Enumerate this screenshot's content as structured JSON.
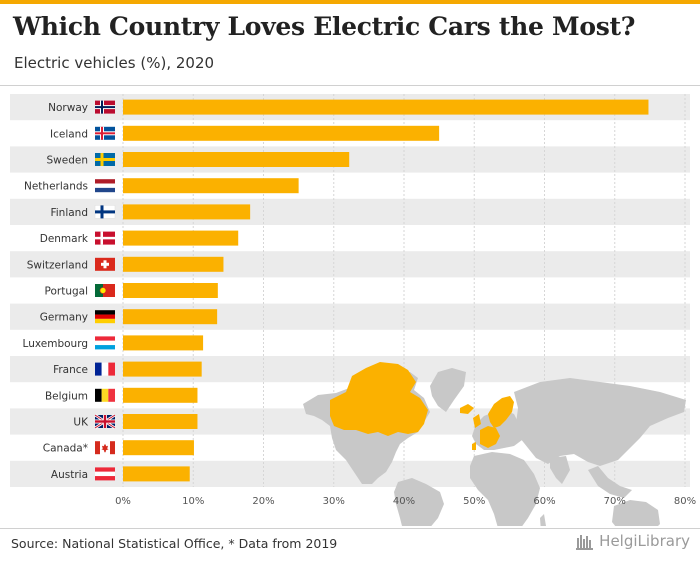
{
  "header": {
    "title": "Which Country Loves Electric Cars the Most?",
    "subtitle": "Electric vehicles (%), 2020"
  },
  "footer": {
    "source": "Source: National Statistical Office, * Data from 2019",
    "brand": "HelgiLibrary"
  },
  "colors": {
    "bar": "#fbb100",
    "accent": "#f5a800",
    "band": "#ebebeb",
    "map_land": "#c8c8c8",
    "map_highlight": "#fbb100"
  },
  "chart_data": {
    "type": "bar",
    "orientation": "horizontal",
    "title": "Which Country Loves Electric Cars the Most?",
    "subtitle": "Electric vehicles (%), 2020",
    "categories": [
      "Norway",
      "Iceland",
      "Sweden",
      "Netherlands",
      "Finland",
      "Denmark",
      "Switzerland",
      "Portugal",
      "Germany",
      "Luxembourg",
      "France",
      "Belgium",
      "UK",
      "Canada*",
      "Austria"
    ],
    "flags": [
      "norway-flag-icon",
      "iceland-flag-icon",
      "sweden-flag-icon",
      "netherlands-flag-icon",
      "finland-flag-icon",
      "denmark-flag-icon",
      "switzerland-flag-icon",
      "portugal-flag-icon",
      "germany-flag-icon",
      "luxembourg-flag-icon",
      "france-flag-icon",
      "belgium-flag-icon",
      "uk-flag-icon",
      "canada-flag-icon",
      "austria-flag-icon"
    ],
    "values": [
      74.8,
      45.0,
      32.2,
      25.0,
      18.1,
      16.4,
      14.3,
      13.5,
      13.4,
      11.4,
      11.2,
      10.6,
      10.6,
      10.1,
      9.5
    ],
    "x_ticks": [
      "0%",
      "10%",
      "20%",
      "30%",
      "40%",
      "50%",
      "60%",
      "70%",
      "80%"
    ],
    "xlim": [
      0,
      80
    ],
    "grid": true,
    "background_map": "world map with listed countries highlighted"
  }
}
